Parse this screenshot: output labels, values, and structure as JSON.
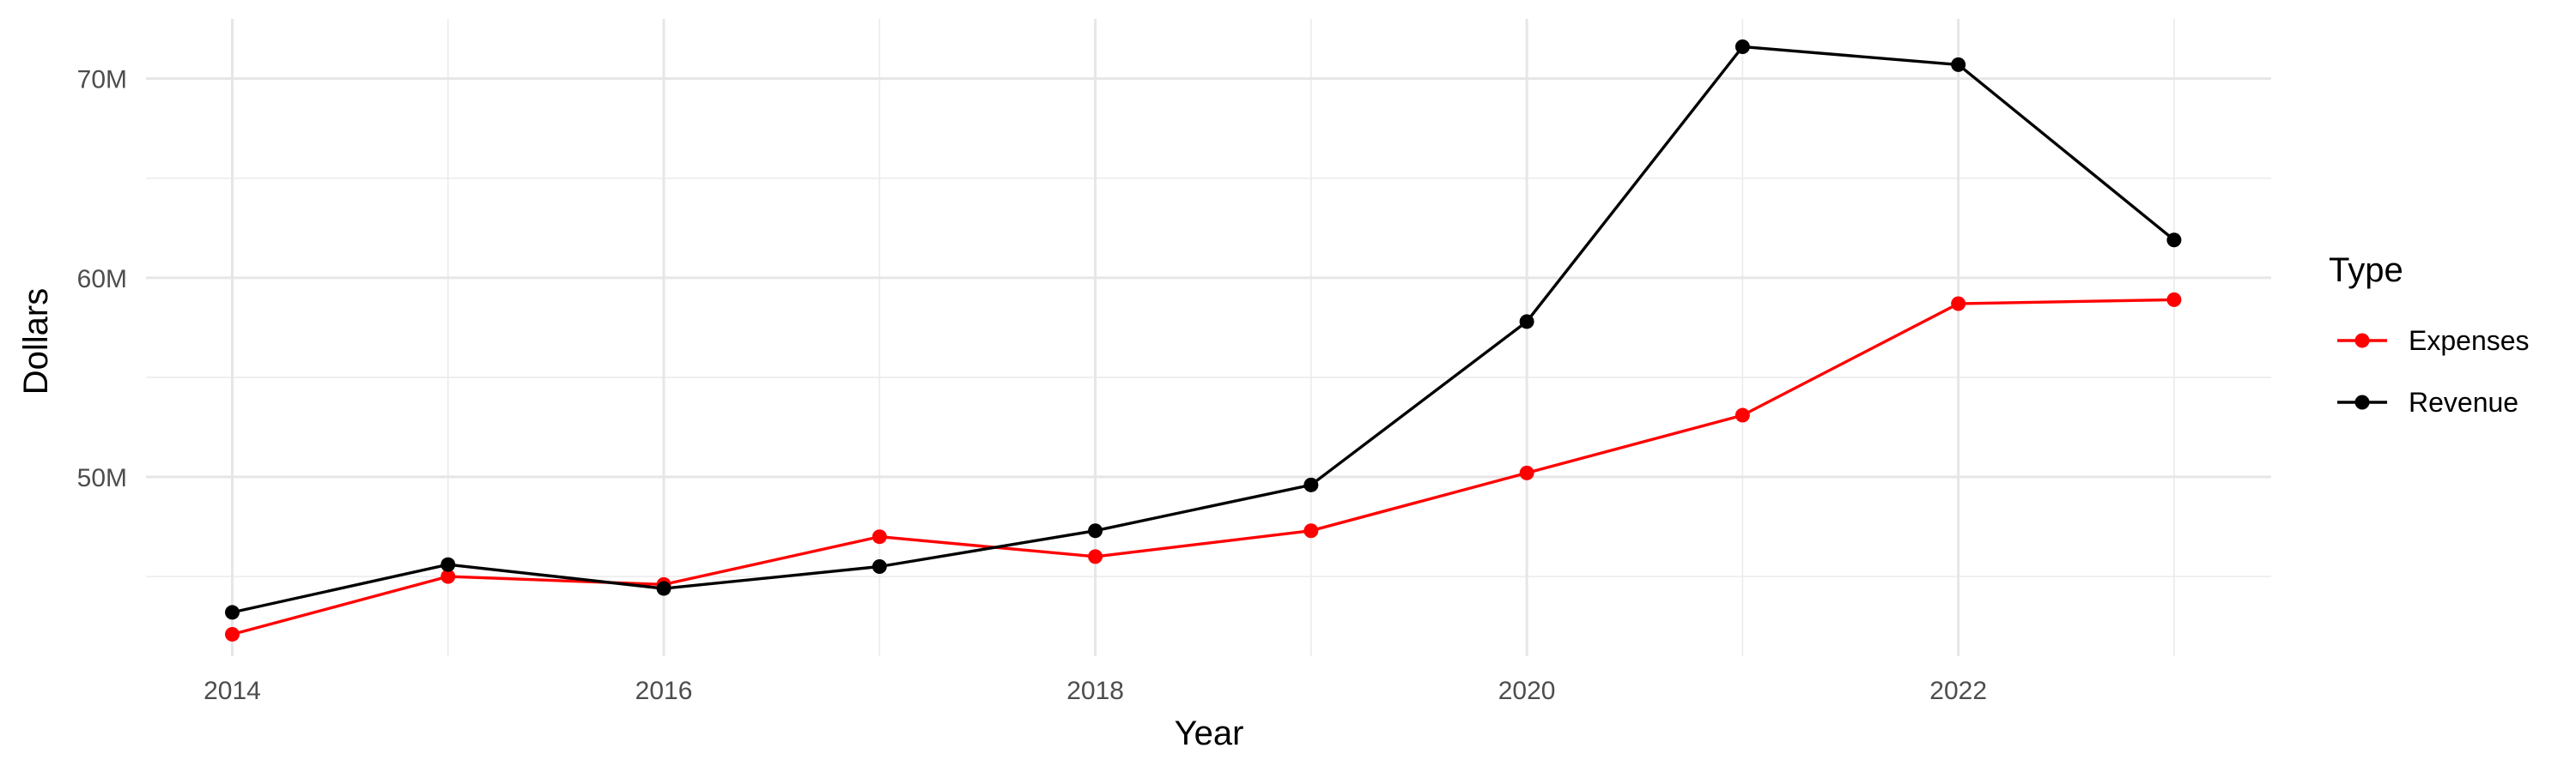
{
  "chart_data": {
    "type": "line",
    "title": "",
    "xlabel": "Year",
    "ylabel": "Dollars",
    "x": [
      2014,
      2015,
      2016,
      2017,
      2018,
      2019,
      2020,
      2021,
      2022,
      2023
    ],
    "x_tick_labels": [
      "2014",
      "2016",
      "2018",
      "2020",
      "2022"
    ],
    "y_tick_labels": [
      "50M",
      "60M",
      "70M"
    ],
    "ylim": [
      41,
      73
    ],
    "xlim": [
      2013.6,
      2023.45
    ],
    "grid": true,
    "legend_title": "Type",
    "legend_position": "right",
    "series": [
      {
        "name": "Expenses",
        "color": "#ff0000",
        "values": [
          42.1,
          45.0,
          44.6,
          47.0,
          46.0,
          47.3,
          50.2,
          53.1,
          58.7,
          58.9
        ]
      },
      {
        "name": "Revenue",
        "color": "#000000",
        "values": [
          43.2,
          45.6,
          44.4,
          45.5,
          47.3,
          49.6,
          57.8,
          71.6,
          70.7,
          61.9
        ]
      }
    ]
  }
}
